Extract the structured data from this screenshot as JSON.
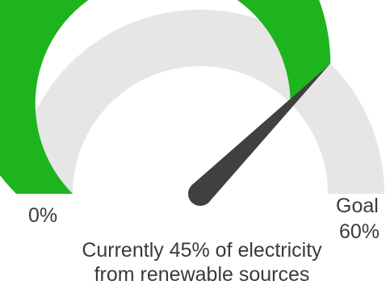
{
  "chart_data": {
    "type": "gauge",
    "min": 0,
    "max": 60,
    "value": 45,
    "unit": "%",
    "min_label": "0%",
    "max_label_line1": "Goal",
    "max_label_line2": "60%",
    "caption_line1": "Currently 45% of electricity",
    "caption_line2": "from renewable sources",
    "colors": {
      "filled": "#1eb41e",
      "track": "#e6e6e6",
      "needle": "#404040",
      "text": "#3a3a3a"
    }
  }
}
